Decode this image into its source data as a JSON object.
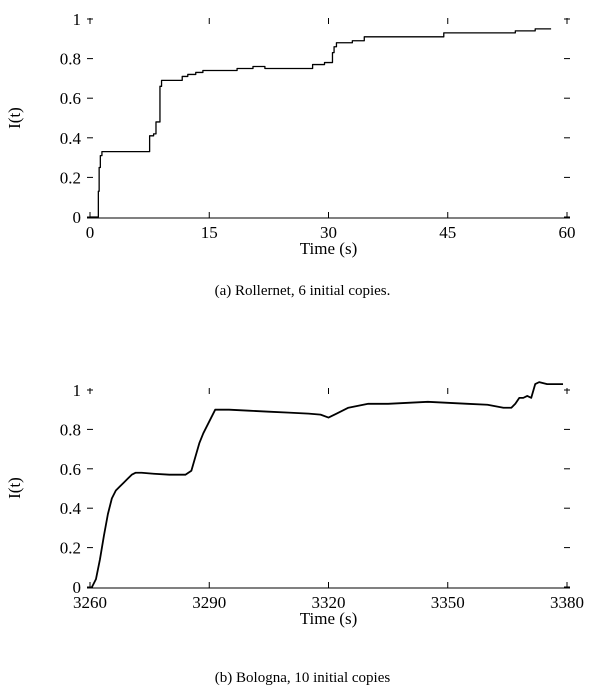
{
  "chart_data": [
    {
      "type": "line",
      "xlabel": "Time (s)",
      "ylabel": "I(t)",
      "xlim": [
        0,
        60
      ],
      "ylim": [
        0,
        1
      ],
      "xticks": [
        0,
        15,
        30,
        45,
        60
      ],
      "yticks": [
        0,
        0.2,
        0.4,
        0.6,
        0.8,
        1
      ],
      "ytick_labels": [
        "0",
        "0.2",
        "0.4",
        "0.6",
        "0.8",
        "1"
      ],
      "series": [
        {
          "step": true,
          "x": [
            0,
            1,
            1.05,
            1.15,
            1.3,
            1.5,
            7.5,
            7.5,
            8.0,
            8.3,
            8.8,
            9.0,
            11.0,
            11.6,
            12.3,
            13.3,
            14.2,
            17.8,
            18.5,
            20.5,
            22.0,
            23.5,
            27.0,
            28.0,
            28.5,
            29.5,
            30.5,
            30.7,
            31.0,
            33.0,
            34.5,
            44.5,
            53.5,
            56.0,
            57.0,
            58.0
          ],
          "y": [
            0,
            0,
            0.13,
            0.25,
            0.31,
            0.33,
            0.33,
            0.41,
            0.42,
            0.48,
            0.66,
            0.69,
            0.69,
            0.71,
            0.72,
            0.73,
            0.74,
            0.74,
            0.75,
            0.76,
            0.75,
            0.75,
            0.75,
            0.77,
            0.77,
            0.78,
            0.83,
            0.86,
            0.88,
            0.89,
            0.91,
            0.93,
            0.94,
            0.95,
            0.95,
            0.95
          ]
        }
      ]
    },
    {
      "type": "line",
      "xlabel": "Time (s)",
      "ylabel": "I(t)",
      "xlim": [
        3260,
        3380
      ],
      "ylim": [
        0,
        1.05
      ],
      "xticks": [
        3260,
        3290,
        3320,
        3350,
        3380
      ],
      "yticks": [
        0,
        0.2,
        0.4,
        0.6,
        0.8,
        1
      ],
      "ytick_labels": [
        "0",
        "0.2",
        "0.4",
        "0.6",
        "0.8",
        "1"
      ],
      "series": [
        {
          "x": [
            3260.5,
            3261.5,
            3262.5,
            3263.5,
            3264.5,
            3265.5,
            3266.5,
            3267.5,
            3268.5,
            3269.5,
            3270.5,
            3271.5,
            3273,
            3276,
            3280,
            3284,
            3285.5,
            3286.5,
            3287.5,
            3288.5,
            3289.5,
            3290.5,
            3291.5,
            3295,
            3300,
            3305,
            3310,
            3315,
            3318,
            3320,
            3322,
            3325,
            3330,
            3335,
            3340,
            3345,
            3350,
            3355,
            3360,
            3364,
            3366,
            3367,
            3368,
            3369,
            3370,
            3371,
            3372,
            3373,
            3375,
            3377,
            3379
          ],
          "y": [
            0.0,
            0.04,
            0.14,
            0.26,
            0.37,
            0.45,
            0.49,
            0.51,
            0.53,
            0.55,
            0.57,
            0.58,
            0.58,
            0.575,
            0.57,
            0.57,
            0.59,
            0.66,
            0.73,
            0.78,
            0.82,
            0.86,
            0.9,
            0.9,
            0.895,
            0.89,
            0.885,
            0.88,
            0.875,
            0.86,
            0.88,
            0.91,
            0.93,
            0.93,
            0.935,
            0.94,
            0.935,
            0.93,
            0.925,
            0.91,
            0.91,
            0.93,
            0.96,
            0.96,
            0.97,
            0.96,
            1.03,
            1.04,
            1.03,
            1.03,
            1.03
          ]
        }
      ]
    }
  ],
  "captions": {
    "a": "(a) Rollernet, 6 initial copies.",
    "b": "(b) Bologna, 10 initial copies"
  },
  "style": {
    "line_color": "#000000",
    "axis_color": "#000000",
    "background": "#ffffff"
  }
}
